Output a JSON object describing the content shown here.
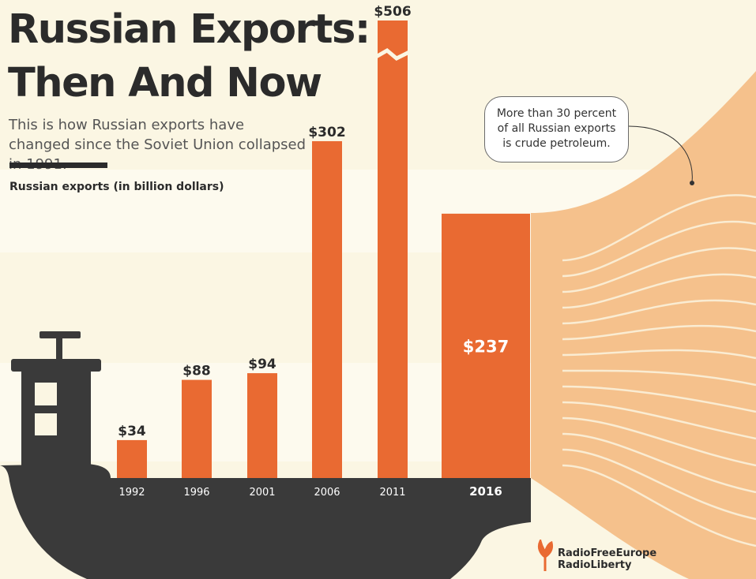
{
  "title": {
    "line1": "Russian Exports:",
    "line2": "Then And Now"
  },
  "subtitle": "This is how Russian exports have changed since the Soviet Union collapsed in 1991.",
  "axis_title": "Russian exports (in billion dollars)",
  "callout": {
    "line1": "More than 30 percent",
    "line2": "of all Russian exports",
    "line3": "is crude petroleum."
  },
  "logo": {
    "line1": "RadioFreeEurope",
    "line2": "RadioLiberty"
  },
  "colors": {
    "bar": "#e96a32",
    "ship": "#3a3a3a",
    "flow": "#f5c18c",
    "background": "#fbf6e3",
    "year_label": "#ffffff"
  },
  "chart_data": {
    "type": "bar",
    "title": "Russian Exports: Then And Now",
    "ylabel": "Russian exports (in billion dollars)",
    "categories": [
      "1992",
      "1996",
      "2001",
      "2006",
      "2011",
      "2016"
    ],
    "values": [
      34,
      88,
      94,
      302,
      506,
      237
    ],
    "value_labels": [
      "$34",
      "$88",
      "$94",
      "$302",
      "$506",
      "$237"
    ],
    "axis_break": true,
    "axis_break_category": "2011",
    "highlight_category": "2016",
    "grid": false,
    "legend": "none"
  }
}
